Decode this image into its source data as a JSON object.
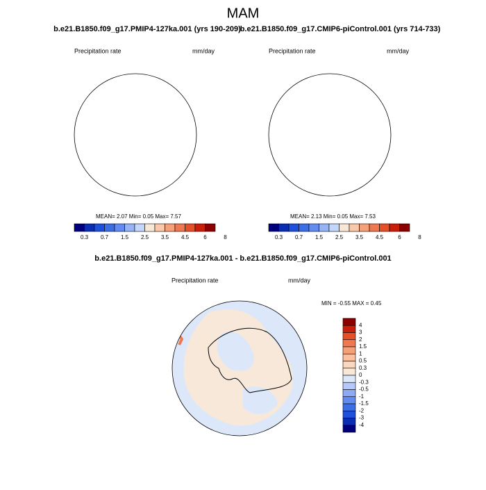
{
  "title": "MAM",
  "panels": [
    {
      "title": "b.e21.B1850.f09_g17.PMIP4-127ka.001 (yrs 190-209)",
      "left_label": "Precipitation rate",
      "right_label": "mm/day",
      "stats": "MEAN=  2.07 Min=  0.05  Max=  7.57"
    },
    {
      "title": "b.e21.B1850.f09_g17.CMIP6-piControl.001 (yrs 714-733)",
      "left_label": "Precipitation rate",
      "right_label": "mm/day",
      "stats": "MEAN=  2.13 Min=  0.05  Max=  7.53"
    }
  ],
  "colorbar": {
    "labels": [
      "0.3",
      "0.7",
      "1.5",
      "2.5",
      "3.5",
      "4.5",
      "6",
      "8"
    ],
    "colors": [
      "#00007f",
      "#0a2db4",
      "#1e50dc",
      "#3c6ee6",
      "#648cf0",
      "#96b4f5",
      "#c4d6fa",
      "#fae8d6",
      "#fac8aa",
      "#f5a078",
      "#f07850",
      "#e65028",
      "#c81e0a",
      "#8c0000"
    ]
  },
  "diff_panel": {
    "title": "b.e21.B1850.f09_g17.PMIP4-127ka.001 - b.e21.B1850.f09_g17.CMIP6-piControl.001",
    "left_label": "Precipitation rate",
    "right_label": "mm/day",
    "stats": "MIN =  -0.55 MAX =   0.45",
    "colorbar": {
      "labels": [
        "4",
        "3",
        "2",
        "1.5",
        "1",
        "0.5",
        "0.3",
        "0",
        "-0.3",
        "-0.5",
        "-1",
        "-1.5",
        "-2",
        "-3",
        "-4"
      ],
      "colors": [
        "#8c0000",
        "#c81e0a",
        "#e65028",
        "#f07850",
        "#f5a078",
        "#fac0a0",
        "#fad7c0",
        "#fae8d6",
        "#dce8fa",
        "#b4c8fa",
        "#8caaf5",
        "#648cf0",
        "#3c6ee6",
        "#1e50dc",
        "#0a2db4",
        "#00007f"
      ]
    }
  }
}
